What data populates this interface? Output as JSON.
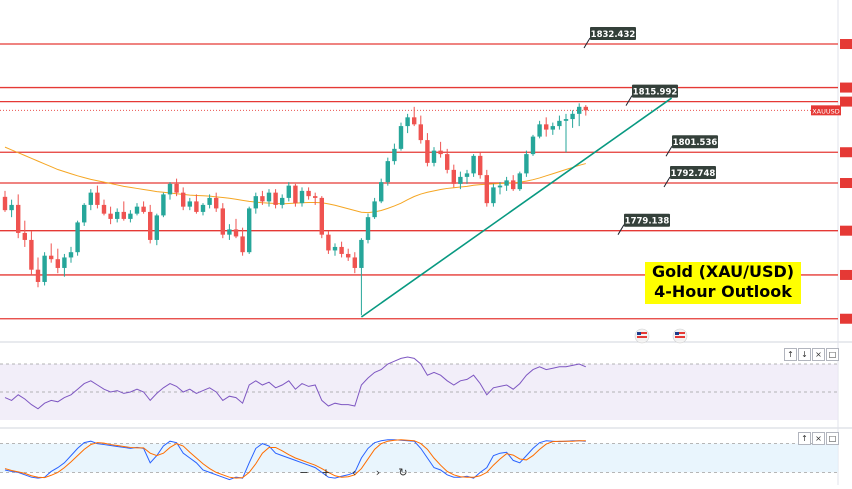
{
  "chart_data": {
    "type": "candlestick",
    "symbol": "XAUUSD",
    "title": "Gold (XAU/USD)",
    "subtitle": "4-Hour Outlook",
    "horizontal_levels": [
      1832.432,
      1815.992,
      1801.536,
      1792.748,
      1779.138
    ],
    "unlabeled_levels": [
      1820.0,
      1766.5,
      1754.0
    ],
    "ylim": [
      1748.5,
      1845.0
    ],
    "current_price": 1813.5,
    "candles": [
      [
        1788.8,
        1790.5,
        1784.5,
        1785.0
      ],
      [
        1785.0,
        1788.0,
        1783.0,
        1786.5
      ],
      [
        1786.5,
        1789.5,
        1777.0,
        1778.5
      ],
      [
        1778.5,
        1782.0,
        1774.5,
        1776.5
      ],
      [
        1776.5,
        1779.0,
        1766.5,
        1768.0
      ],
      [
        1768.0,
        1771.5,
        1763.0,
        1764.5
      ],
      [
        1764.5,
        1773.0,
        1763.5,
        1772.0
      ],
      [
        1772.0,
        1775.5,
        1770.0,
        1771.0
      ],
      [
        1771.0,
        1774.0,
        1767.0,
        1768.5
      ],
      [
        1768.5,
        1772.5,
        1766.0,
        1771.5
      ],
      [
        1771.5,
        1774.5,
        1770.0,
        1773.0
      ],
      [
        1773.0,
        1782.0,
        1772.0,
        1781.5
      ],
      [
        1781.5,
        1787.0,
        1780.5,
        1786.5
      ],
      [
        1786.5,
        1791.0,
        1785.0,
        1790.0
      ],
      [
        1790.0,
        1792.0,
        1785.5,
        1786.5
      ],
      [
        1786.5,
        1788.0,
        1783.5,
        1784.0
      ],
      [
        1784.0,
        1786.0,
        1781.0,
        1782.5
      ],
      [
        1782.5,
        1785.5,
        1781.5,
        1784.5
      ],
      [
        1784.5,
        1787.5,
        1782.0,
        1782.5
      ],
      [
        1782.5,
        1785.0,
        1781.5,
        1784.0
      ],
      [
        1784.0,
        1787.0,
        1783.5,
        1786.0
      ],
      [
        1786.0,
        1787.5,
        1784.0,
        1784.5
      ],
      [
        1784.5,
        1786.5,
        1775.5,
        1776.5
      ],
      [
        1776.5,
        1784.0,
        1775.0,
        1783.5
      ],
      [
        1783.5,
        1790.0,
        1783.0,
        1789.5
      ],
      [
        1789.5,
        1793.0,
        1788.0,
        1792.5
      ],
      [
        1792.5,
        1794.0,
        1789.0,
        1790.0
      ],
      [
        1790.0,
        1791.5,
        1785.0,
        1786.0
      ],
      [
        1786.0,
        1788.5,
        1785.0,
        1787.5
      ],
      [
        1787.5,
        1789.5,
        1784.0,
        1784.5
      ],
      [
        1784.5,
        1787.0,
        1783.5,
        1786.5
      ],
      [
        1786.5,
        1789.5,
        1785.5,
        1788.5
      ],
      [
        1788.5,
        1790.0,
        1784.5,
        1785.5
      ],
      [
        1785.5,
        1787.0,
        1777.0,
        1778.0
      ],
      [
        1778.0,
        1781.0,
        1776.5,
        1779.5
      ],
      [
        1779.5,
        1782.5,
        1777.0,
        1777.5
      ],
      [
        1777.5,
        1780.0,
        1772.0,
        1773.0
      ],
      [
        1773.0,
        1786.0,
        1772.5,
        1785.5
      ],
      [
        1785.5,
        1790.0,
        1784.0,
        1789.0
      ],
      [
        1789.0,
        1790.5,
        1786.5,
        1787.5
      ],
      [
        1787.5,
        1791.0,
        1786.0,
        1790.0
      ],
      [
        1790.0,
        1791.0,
        1785.5,
        1786.5
      ],
      [
        1786.5,
        1789.5,
        1785.5,
        1788.5
      ],
      [
        1788.5,
        1793.0,
        1787.5,
        1792.0
      ],
      [
        1792.0,
        1792.5,
        1786.0,
        1787.0
      ],
      [
        1787.0,
        1791.5,
        1786.0,
        1790.5
      ],
      [
        1790.5,
        1791.5,
        1788.0,
        1789.0
      ],
      [
        1789.0,
        1790.0,
        1786.5,
        1788.5
      ],
      [
        1788.5,
        1789.0,
        1777.0,
        1778.0
      ],
      [
        1778.0,
        1779.0,
        1772.5,
        1773.5
      ],
      [
        1773.5,
        1775.5,
        1772.0,
        1774.5
      ],
      [
        1774.5,
        1776.0,
        1771.5,
        1772.5
      ],
      [
        1772.5,
        1774.0,
        1770.5,
        1771.5
      ],
      [
        1771.5,
        1773.0,
        1767.0,
        1768.5
      ],
      [
        1768.5,
        1777.0,
        1755.0,
        1776.5
      ],
      [
        1776.5,
        1784.0,
        1775.5,
        1783.0
      ],
      [
        1783.0,
        1788.5,
        1782.5,
        1787.5
      ],
      [
        1787.5,
        1794.0,
        1787.0,
        1793.0
      ],
      [
        1793.0,
        1800.0,
        1792.0,
        1799.0
      ],
      [
        1799.0,
        1804.0,
        1798.0,
        1802.5
      ],
      [
        1802.5,
        1810.0,
        1802.0,
        1809.0
      ],
      [
        1809.0,
        1812.5,
        1807.0,
        1811.5
      ],
      [
        1811.5,
        1814.5,
        1809.0,
        1809.5
      ],
      [
        1809.5,
        1812.0,
        1804.0,
        1805.0
      ],
      [
        1805.0,
        1807.0,
        1797.5,
        1798.5
      ],
      [
        1798.5,
        1803.0,
        1797.5,
        1802.0
      ],
      [
        1802.0,
        1804.5,
        1800.0,
        1801.0
      ],
      [
        1801.0,
        1802.5,
        1795.5,
        1796.5
      ],
      [
        1796.5,
        1798.0,
        1791.5,
        1792.5
      ],
      [
        1792.5,
        1796.0,
        1791.0,
        1794.5
      ],
      [
        1794.5,
        1796.5,
        1792.5,
        1795.5
      ],
      [
        1795.5,
        1801.0,
        1794.5,
        1800.5
      ],
      [
        1800.5,
        1801.5,
        1794.0,
        1795.0
      ],
      [
        1795.0,
        1796.5,
        1786.0,
        1787.0
      ],
      [
        1787.0,
        1792.5,
        1786.0,
        1791.5
      ],
      [
        1791.5,
        1793.0,
        1789.5,
        1792.0
      ],
      [
        1792.0,
        1794.5,
        1790.5,
        1793.5
      ],
      [
        1793.5,
        1795.0,
        1790.5,
        1791.0
      ],
      [
        1791.0,
        1796.0,
        1790.5,
        1795.5
      ],
      [
        1795.5,
        1802.0,
        1794.5,
        1801.0
      ],
      [
        1801.0,
        1806.5,
        1800.5,
        1806.0
      ],
      [
        1806.0,
        1810.5,
        1805.5,
        1809.5
      ],
      [
        1809.5,
        1811.5,
        1806.0,
        1808.0
      ],
      [
        1808.0,
        1810.0,
        1806.5,
        1809.0
      ],
      [
        1809.0,
        1812.0,
        1808.0,
        1810.5
      ],
      [
        1810.5,
        1812.5,
        1801.5,
        1811.0
      ],
      [
        1811.0,
        1813.5,
        1808.5,
        1812.5
      ],
      [
        1812.5,
        1815.5,
        1809.0,
        1814.5
      ],
      [
        1814.5,
        1815.0,
        1812.0,
        1813.5
      ]
    ],
    "ma": [
      1803.0,
      1802.2,
      1801.4,
      1800.6,
      1799.8,
      1799.0,
      1798.2,
      1797.4,
      1796.6,
      1796.0,
      1795.4,
      1794.8,
      1794.3,
      1793.8,
      1793.4,
      1793.0,
      1792.6,
      1792.2,
      1791.8,
      1791.5,
      1791.2,
      1790.9,
      1790.6,
      1790.3,
      1790.1,
      1789.9,
      1789.7,
      1789.5,
      1789.3,
      1789.2,
      1789.1,
      1789.0,
      1788.8,
      1788.6,
      1788.4,
      1788.1,
      1787.8,
      1787.5,
      1787.3,
      1787.1,
      1787.0,
      1786.9,
      1786.8,
      1786.9,
      1787.0,
      1787.1,
      1787.2,
      1787.2,
      1787.1,
      1786.8,
      1786.4,
      1785.9,
      1785.4,
      1784.9,
      1784.4,
      1784.3,
      1784.5,
      1784.9,
      1785.5,
      1786.2,
      1787.0,
      1788.0,
      1788.9,
      1789.6,
      1790.1,
      1790.5,
      1790.9,
      1791.2,
      1791.4,
      1791.6,
      1791.8,
      1792.1,
      1792.3,
      1792.4,
      1792.5,
      1792.6,
      1792.7,
      1792.8,
      1793.0,
      1793.3,
      1793.7,
      1794.2,
      1794.8,
      1795.4,
      1796.0,
      1796.6,
      1797.2,
      1797.8,
      1798.3
    ],
    "trendline": [
      {
        "bar": 54,
        "price": 1754.5
      },
      {
        "bar": 101,
        "price": 1817.0
      }
    ],
    "rsi": [
      46,
      44,
      48,
      45,
      41,
      38,
      42,
      44,
      43,
      46,
      48,
      52,
      56,
      58,
      55,
      52,
      50,
      51,
      49,
      50,
      52,
      50,
      44,
      49,
      53,
      56,
      54,
      50,
      52,
      49,
      51,
      53,
      50,
      44,
      47,
      46,
      42,
      55,
      58,
      55,
      57,
      53,
      55,
      58,
      52,
      56,
      54,
      55,
      44,
      40,
      42,
      41,
      41,
      40,
      55,
      60,
      64,
      66,
      70,
      72,
      74,
      75,
      74,
      70,
      62,
      64,
      62,
      58,
      55,
      58,
      59,
      62,
      56,
      48,
      53,
      54,
      55,
      52,
      56,
      62,
      66,
      68,
      66,
      67,
      68,
      68,
      69,
      70,
      68
    ],
    "rsi_ylim": [
      30,
      80
    ],
    "stoch_k": [
      25,
      22,
      20,
      15,
      10,
      8,
      10,
      22,
      30,
      40,
      55,
      70,
      82,
      85,
      80,
      78,
      76,
      74,
      72,
      70,
      72,
      70,
      40,
      55,
      75,
      85,
      82,
      60,
      50,
      40,
      25,
      20,
      15,
      10,
      5,
      10,
      8,
      40,
      70,
      80,
      75,
      60,
      55,
      50,
      45,
      40,
      35,
      30,
      20,
      10,
      8,
      12,
      15,
      20,
      50,
      70,
      82,
      86,
      88,
      88,
      87,
      86,
      85,
      70,
      50,
      30,
      25,
      15,
      10,
      10,
      12,
      8,
      20,
      30,
      55,
      60,
      62,
      45,
      40,
      55,
      70,
      82,
      86,
      85,
      84,
      85,
      86,
      86,
      85
    ],
    "stoch_d": [
      28,
      24,
      21,
      18,
      13,
      10,
      9,
      14,
      20,
      30,
      42,
      55,
      68,
      78,
      82,
      81,
      78,
      76,
      74,
      72,
      71,
      71,
      60,
      55,
      60,
      72,
      80,
      75,
      62,
      50,
      38,
      28,
      20,
      15,
      10,
      8,
      9,
      20,
      38,
      60,
      72,
      72,
      65,
      57,
      50,
      45,
      40,
      35,
      28,
      20,
      13,
      10,
      11,
      15,
      28,
      48,
      68,
      80,
      85,
      87,
      88,
      87,
      86,
      80,
      68,
      50,
      35,
      22,
      15,
      11,
      10,
      10,
      13,
      20,
      35,
      48,
      59,
      56,
      48,
      46,
      55,
      68,
      79,
      84,
      85,
      85,
      85,
      86,
      86
    ],
    "stoch_ylim": [
      0,
      100
    ]
  }
}
